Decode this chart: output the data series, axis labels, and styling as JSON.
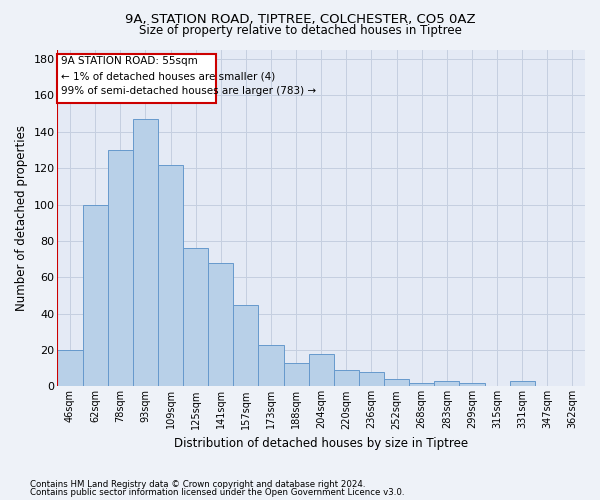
{
  "title_line1": "9A, STATION ROAD, TIPTREE, COLCHESTER, CO5 0AZ",
  "title_line2": "Size of property relative to detached houses in Tiptree",
  "xlabel": "Distribution of detached houses by size in Tiptree",
  "ylabel": "Number of detached properties",
  "categories": [
    "46sqm",
    "62sqm",
    "78sqm",
    "93sqm",
    "109sqm",
    "125sqm",
    "141sqm",
    "157sqm",
    "173sqm",
    "188sqm",
    "204sqm",
    "220sqm",
    "236sqm",
    "252sqm",
    "268sqm",
    "283sqm",
    "299sqm",
    "315sqm",
    "331sqm",
    "347sqm",
    "362sqm"
  ],
  "values": [
    20,
    100,
    130,
    147,
    122,
    76,
    68,
    45,
    23,
    13,
    18,
    9,
    8,
    4,
    2,
    3,
    2,
    0,
    3,
    0,
    0
  ],
  "bar_color": "#b8d0e8",
  "bar_edge_color": "#6699cc",
  "ylim": [
    0,
    185
  ],
  "yticks": [
    0,
    20,
    40,
    60,
    80,
    100,
    120,
    140,
    160,
    180
  ],
  "annotation_line1": "9A STATION ROAD: 55sqm",
  "annotation_line2": "← 1% of detached houses are smaller (4)",
  "annotation_line3": "99% of semi-detached houses are larger (783) →",
  "annotation_box_color": "#ffffff",
  "annotation_box_edge": "#cc0000",
  "footer_line1": "Contains HM Land Registry data © Crown copyright and database right 2024.",
  "footer_line2": "Contains public sector information licensed under the Open Government Licence v3.0.",
  "bg_color": "#eef2f8",
  "plot_bg_color": "#e4eaf5"
}
